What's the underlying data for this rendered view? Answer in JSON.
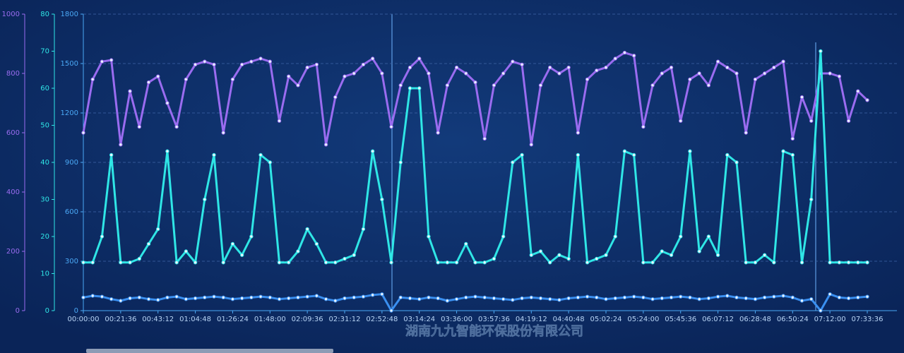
{
  "chart_data": {
    "type": "line",
    "categories": [
      "00:00:00",
      null,
      null,
      null,
      "00:21:36",
      null,
      null,
      null,
      "00:43:12",
      null,
      null,
      null,
      "01:04:48",
      null,
      null,
      null,
      "01:26:24",
      null,
      null,
      null,
      "01:48:00",
      null,
      null,
      null,
      "02:09:36",
      null,
      null,
      null,
      "02:31:12",
      null,
      null,
      null,
      "02:52:48",
      null,
      null,
      null,
      "03:14:24",
      null,
      null,
      null,
      "03:36:00",
      null,
      null,
      null,
      "03:57:36",
      null,
      null,
      null,
      "04:19:12",
      null,
      null,
      null,
      "04:40:48",
      null,
      null,
      null,
      "05:02:24",
      null,
      null,
      null,
      "05:24:00",
      null,
      null,
      null,
      "05:45:36",
      null,
      null,
      null,
      "06:07:12",
      null,
      null,
      null,
      "06:28:48",
      null,
      null,
      null,
      "06:50:24",
      null,
      null,
      null,
      "07:12:00",
      null,
      null,
      null,
      "07:33:36"
    ],
    "ylim": [
      0,
      1000
    ],
    "yticks": [
      0,
      200,
      400,
      600,
      800,
      1000
    ],
    "y2lim": [
      0,
      80
    ],
    "y2ticks": [
      0,
      10,
      20,
      30,
      40,
      50,
      60,
      70,
      80
    ],
    "y3lim": [
      0,
      1800
    ],
    "y3ticks": [
      0,
      300,
      600,
      900,
      1200,
      1500,
      1800
    ],
    "grid": true,
    "series": [
      {
        "color": "#9a6cf0",
        "axis": "y",
        "values": [
          600,
          780,
          840,
          845,
          560,
          740,
          620,
          770,
          790,
          700,
          620,
          780,
          830,
          840,
          830,
          600,
          780,
          830,
          840,
          850,
          840,
          640,
          790,
          760,
          820,
          830,
          560,
          720,
          790,
          800,
          830,
          850,
          800,
          620,
          760,
          820,
          850,
          800,
          600,
          760,
          820,
          800,
          770,
          580,
          760,
          800,
          840,
          830,
          560,
          760,
          820,
          800,
          820,
          600,
          780,
          810,
          820,
          850,
          870,
          860,
          620,
          760,
          800,
          820,
          640,
          780,
          800,
          760,
          840,
          820,
          800,
          600,
          780,
          800,
          820,
          840,
          580,
          720,
          640,
          800,
          800,
          790,
          640,
          740,
          710
        ]
      },
      {
        "color": "#2fe6e6",
        "axis": "y2",
        "values": [
          13,
          13,
          20,
          42,
          13,
          13,
          14,
          18,
          22,
          43,
          13,
          16,
          13,
          30,
          42,
          13,
          18,
          15,
          20,
          42,
          40,
          13,
          13,
          16,
          22,
          18,
          13,
          13,
          14,
          15,
          22,
          43,
          30,
          13,
          40,
          60,
          60,
          20,
          13,
          13,
          13,
          18,
          13,
          13,
          14,
          20,
          40,
          42,
          15,
          16,
          13,
          15,
          14,
          42,
          13,
          14,
          15,
          20,
          43,
          42,
          13,
          13,
          16,
          15,
          20,
          43,
          16,
          20,
          15,
          42,
          40,
          13,
          13,
          15,
          13,
          43,
          42,
          13,
          30,
          70,
          13,
          13,
          13,
          13,
          13
        ]
      },
      {
        "color": "#3a8ff0",
        "axis": "y3",
        "values": [
          80,
          90,
          85,
          70,
          60,
          75,
          80,
          70,
          65,
          80,
          85,
          70,
          75,
          80,
          85,
          80,
          70,
          75,
          80,
          85,
          80,
          70,
          75,
          80,
          85,
          90,
          70,
          60,
          75,
          80,
          85,
          95,
          100,
          0,
          80,
          75,
          70,
          80,
          75,
          60,
          70,
          80,
          85,
          80,
          75,
          70,
          65,
          75,
          80,
          75,
          70,
          65,
          75,
          80,
          85,
          80,
          70,
          75,
          80,
          85,
          80,
          70,
          75,
          80,
          85,
          80,
          70,
          75,
          85,
          90,
          80,
          75,
          70,
          80,
          85,
          90,
          80,
          60,
          70,
          0,
          100,
          80,
          75,
          80,
          85
        ]
      }
    ]
  },
  "watermark": "湖南九九智能环保股份有限公司"
}
